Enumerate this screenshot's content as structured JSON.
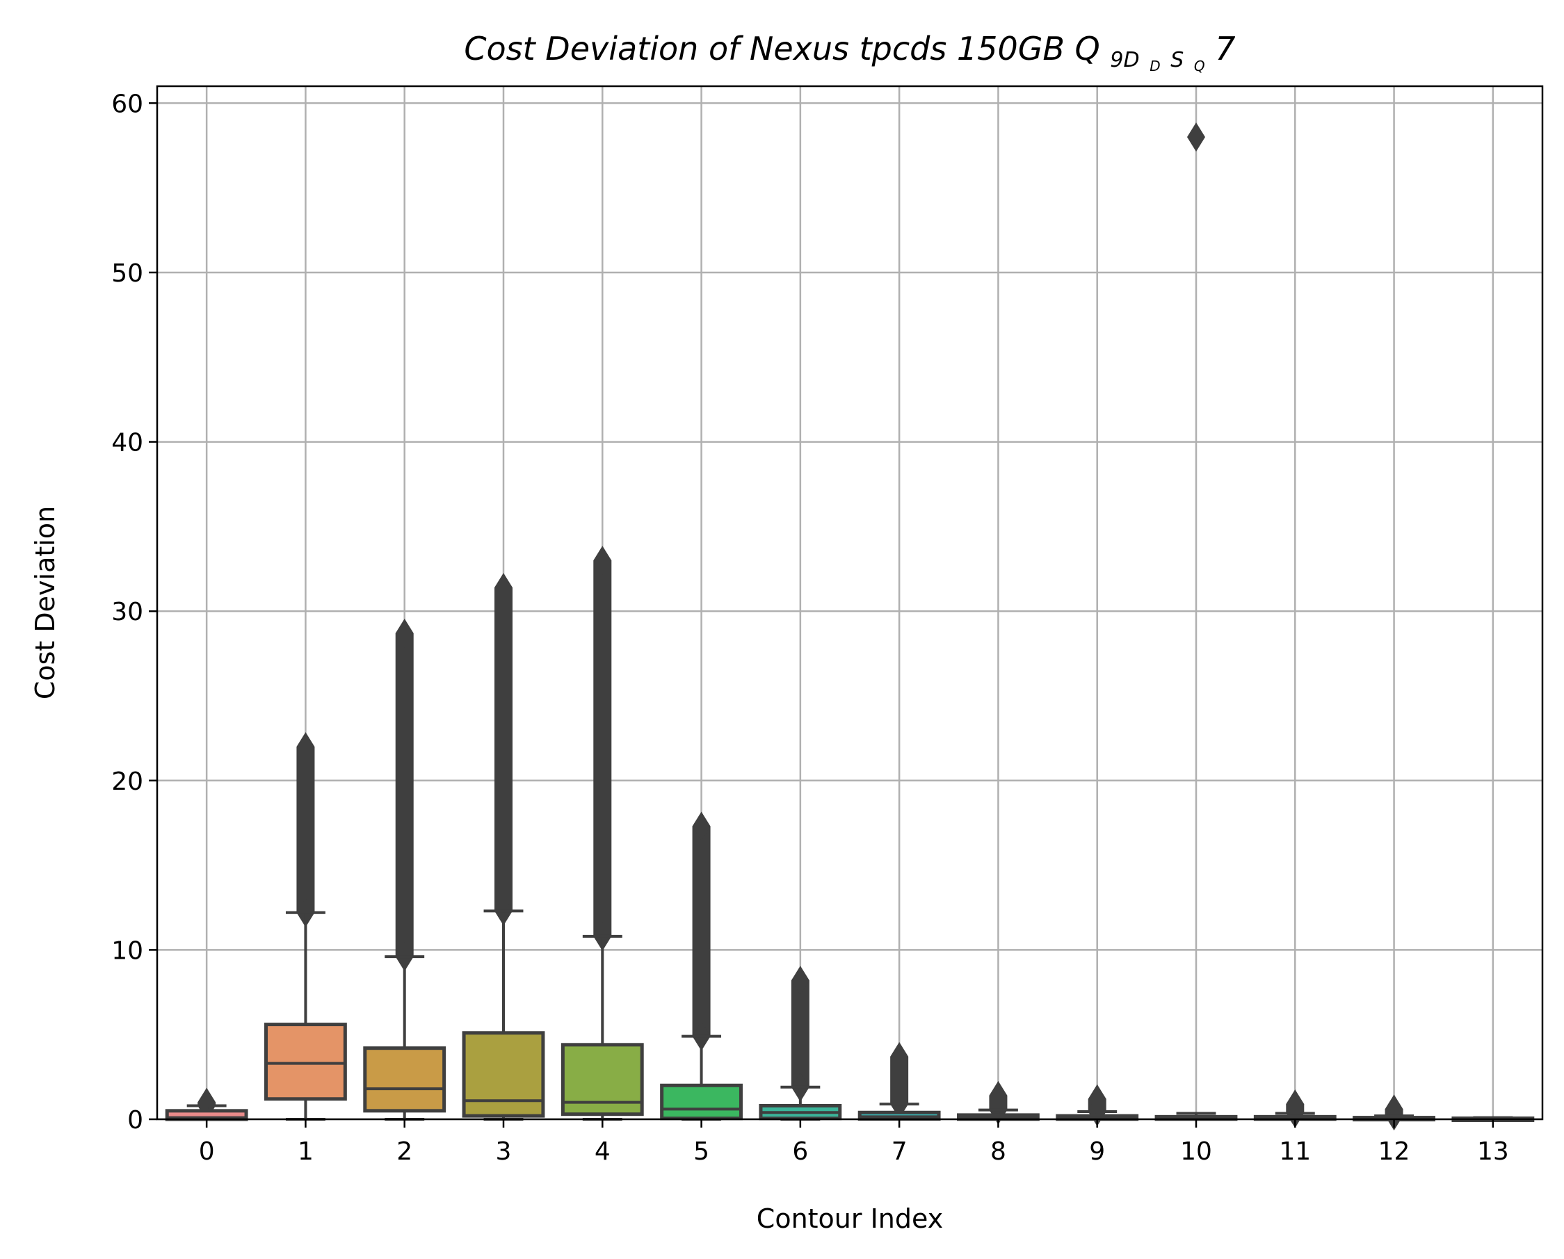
{
  "chart_data": {
    "type": "box",
    "title": {
      "main": "Cost Deviation of Nexus tpcds  150GB  ",
      "suffix_base": "Q",
      "suffix_sub": "9D",
      "suffix_subsub": "D",
      "suffix_sub2": "S",
      "suffix_subsub2": "Q",
      "suffix_tail": "7"
    },
    "xlabel": "Contour Index",
    "ylabel": "Cost Deviation",
    "ylim": [
      0,
      61
    ],
    "yticks": [
      0,
      10,
      20,
      30,
      40,
      50,
      60
    ],
    "grid": true,
    "categories": [
      "0",
      "1",
      "2",
      "3",
      "4",
      "5",
      "6",
      "7",
      "8",
      "9",
      "10",
      "11",
      "12",
      "13"
    ],
    "boxes": [
      {
        "q1": 0.0,
        "median": 0.1,
        "q3": 0.5,
        "whisker_low": 0.0,
        "whisker_high": 0.8,
        "outlier_max": 1.0,
        "color": "#ea8b8a"
      },
      {
        "q1": 1.2,
        "median": 3.3,
        "q3": 5.6,
        "whisker_low": 0.0,
        "whisker_high": 12.2,
        "outlier_max": 22.0,
        "color": "#e49467"
      },
      {
        "q1": 0.5,
        "median": 1.8,
        "q3": 4.2,
        "whisker_low": 0.0,
        "whisker_high": 9.6,
        "outlier_max": 28.7,
        "color": "#c99b47"
      },
      {
        "q1": 0.2,
        "median": 1.1,
        "q3": 5.1,
        "whisker_low": 0.0,
        "whisker_high": 12.3,
        "outlier_max": 31.4,
        "color": "#aaa040"
      },
      {
        "q1": 0.3,
        "median": 1.0,
        "q3": 4.4,
        "whisker_low": 0.0,
        "whisker_high": 10.8,
        "outlier_max": 33.0,
        "color": "#88ad46"
      },
      {
        "q1": 0.05,
        "median": 0.6,
        "q3": 2.0,
        "whisker_low": 0.0,
        "whisker_high": 4.9,
        "outlier_max": 17.3,
        "color": "#3bb760"
      },
      {
        "q1": 0.05,
        "median": 0.4,
        "q3": 0.8,
        "whisker_low": 0.0,
        "whisker_high": 1.9,
        "outlier_max": 8.2,
        "color": "#3bb59a"
      },
      {
        "q1": 0.02,
        "median": 0.15,
        "q3": 0.4,
        "whisker_low": 0.0,
        "whisker_high": 0.9,
        "outlier_max": 3.7,
        "color": "#3cb1b1"
      },
      {
        "q1": 0.01,
        "median": 0.08,
        "q3": 0.25,
        "whisker_low": 0.0,
        "whisker_high": 0.55,
        "outlier_max": 1.4,
        "color": "#3eaecf"
      },
      {
        "q1": 0.01,
        "median": 0.05,
        "q3": 0.2,
        "whisker_low": 0.0,
        "whisker_high": 0.45,
        "outlier_max": 1.2,
        "color": "#5da8e0"
      },
      {
        "q1": 0.01,
        "median": 0.04,
        "q3": 0.15,
        "whisker_low": 0.0,
        "whisker_high": 0.35,
        "outlier_max": 58.0,
        "single_outlier": true,
        "color": "#8c9ee9"
      },
      {
        "q1": 0.01,
        "median": 0.04,
        "q3": 0.15,
        "whisker_low": 0.0,
        "whisker_high": 0.35,
        "outlier_max": 0.9,
        "color": "#b896ea"
      },
      {
        "q1": 0.01,
        "median": 0.03,
        "q3": 0.1,
        "whisker_low": 0.0,
        "whisker_high": 0.2,
        "outlier_max": 0.6,
        "color": "#db8de0"
      },
      {
        "q1": 0.0,
        "median": 0.02,
        "q3": 0.06,
        "whisker_low": 0.0,
        "whisker_high": 0.1,
        "outlier_max": 0.1,
        "color": "#ea88c4"
      }
    ]
  }
}
